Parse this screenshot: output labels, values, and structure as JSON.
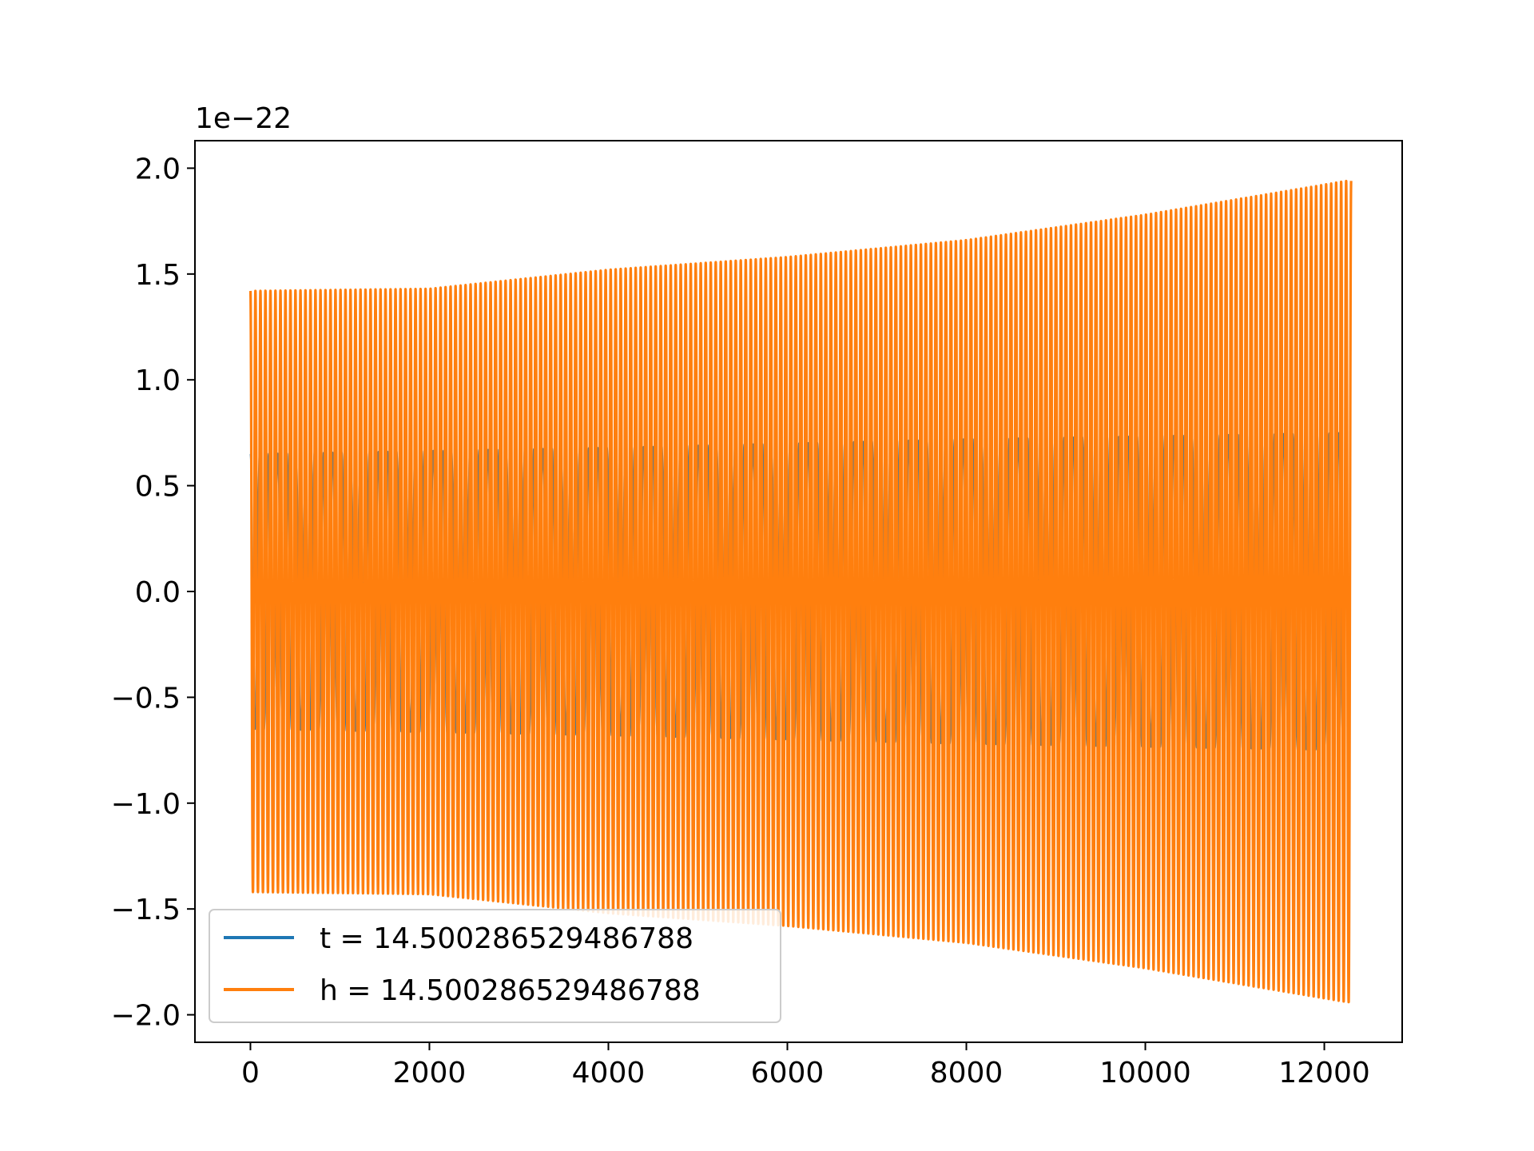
{
  "chart_data": {
    "type": "line",
    "title": "",
    "xlabel": "",
    "ylabel": "",
    "y_offset_label": "1e−22",
    "xlim": [
      -620,
      12870
    ],
    "ylim": [
      -2.13,
      2.13
    ],
    "grid": false,
    "legend_position": "lower-left",
    "x_ticks": [
      {
        "value": 0,
        "label": "0"
      },
      {
        "value": 2000,
        "label": "2000"
      },
      {
        "value": 4000,
        "label": "4000"
      },
      {
        "value": 6000,
        "label": "6000"
      },
      {
        "value": 8000,
        "label": "8000"
      },
      {
        "value": 10000,
        "label": "10000"
      },
      {
        "value": 12000,
        "label": "12000"
      }
    ],
    "y_ticks": [
      {
        "value": 2.0,
        "label": "2.0"
      },
      {
        "value": 1.5,
        "label": "1.5"
      },
      {
        "value": 1.0,
        "label": "1.0"
      },
      {
        "value": 0.5,
        "label": "0.5"
      },
      {
        "value": 0.0,
        "label": "0.0"
      },
      {
        "value": -0.5,
        "label": "−0.5"
      },
      {
        "value": -1.0,
        "label": "−1.0"
      },
      {
        "value": -1.5,
        "label": "−1.5"
      },
      {
        "value": -2.0,
        "label": "−2.0"
      }
    ],
    "series": [
      {
        "name": "t = 14.500286529486788",
        "color": "#1f77b4",
        "x_start": 0,
        "x_end": 12260,
        "cycles": 120,
        "amplitude_envelope": [
          {
            "x": 0,
            "y": 0.65
          },
          {
            "x": 4000,
            "y": 0.68
          },
          {
            "x": 8000,
            "y": 0.72
          },
          {
            "x": 12260,
            "y": 0.75
          }
        ]
      },
      {
        "name": "h = 14.500286529486788",
        "color": "#ff7f0e",
        "x_start": 0,
        "x_end": 12300,
        "cycles": 220,
        "amplitude_envelope": [
          {
            "x": 0,
            "y": 1.42
          },
          {
            "x": 2000,
            "y": 1.43
          },
          {
            "x": 4000,
            "y": 1.52
          },
          {
            "x": 6000,
            "y": 1.58
          },
          {
            "x": 8000,
            "y": 1.66
          },
          {
            "x": 10000,
            "y": 1.78
          },
          {
            "x": 12250,
            "y": 1.94
          }
        ]
      }
    ]
  }
}
